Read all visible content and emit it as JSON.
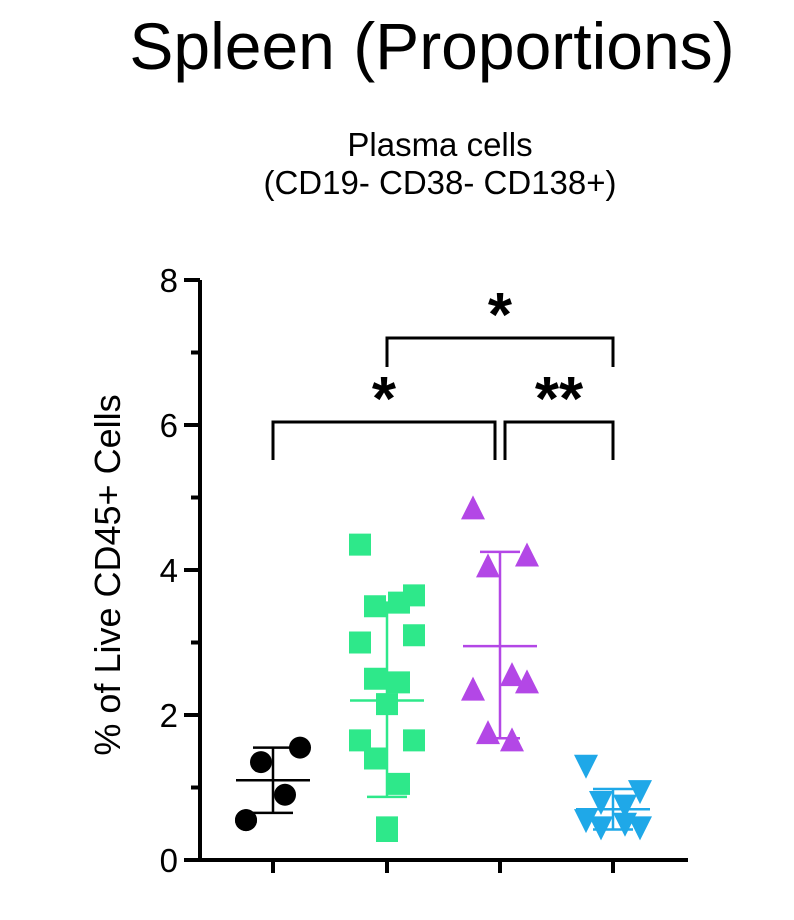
{
  "chart_data": {
    "type": "scatter",
    "title": "Spleen (Proportions)",
    "subtitle_lines": [
      "Plasma cells",
      "(CD19- CD38- CD138+)"
    ],
    "ylabel": "% of Live CD45+ Cells",
    "xlabel": "",
    "ylim": [
      0,
      8
    ],
    "yticks": [
      0,
      2,
      4,
      6,
      8
    ],
    "grid": false,
    "legend": "none",
    "series": [
      {
        "marker": "circle",
        "color": "#000000",
        "values": [
          0.55,
          1.55,
          1.35,
          0.9,
          0.55
        ],
        "mean": 1.1,
        "sd_low": 0.65,
        "sd_high": 1.55
      },
      {
        "marker": "square",
        "color": "#2ee88a",
        "values": [
          4.35,
          3.65,
          3.5,
          3.55,
          3.0,
          3.1,
          2.5,
          2.45,
          2.15,
          1.65,
          1.65,
          1.4,
          1.05,
          0.4,
          0.45
        ],
        "mean": 2.2,
        "sd_low": 0.87,
        "sd_high": 3.55
      },
      {
        "marker": "triangle-up",
        "color": "#b347e6",
        "values": [
          4.85,
          4.2,
          4.05,
          2.55,
          2.35,
          2.45,
          1.75,
          1.65
        ],
        "mean": 2.95,
        "sd_low": 1.68,
        "sd_high": 4.25
      },
      {
        "marker": "triangle-down",
        "color": "#1fa8e8",
        "values": [
          1.3,
          0.95,
          0.8,
          0.75,
          0.55,
          0.45,
          0.45,
          0.5
        ],
        "mean": 0.7,
        "sd_low": 0.42,
        "sd_high": 0.98
      }
    ],
    "significance": [
      {
        "from_group": 1,
        "to_group": 3,
        "label": "*"
      },
      {
        "from_group": 0,
        "to_group": 2,
        "label": "*"
      },
      {
        "from_group": 2,
        "to_group": 3,
        "label": "**"
      }
    ]
  }
}
